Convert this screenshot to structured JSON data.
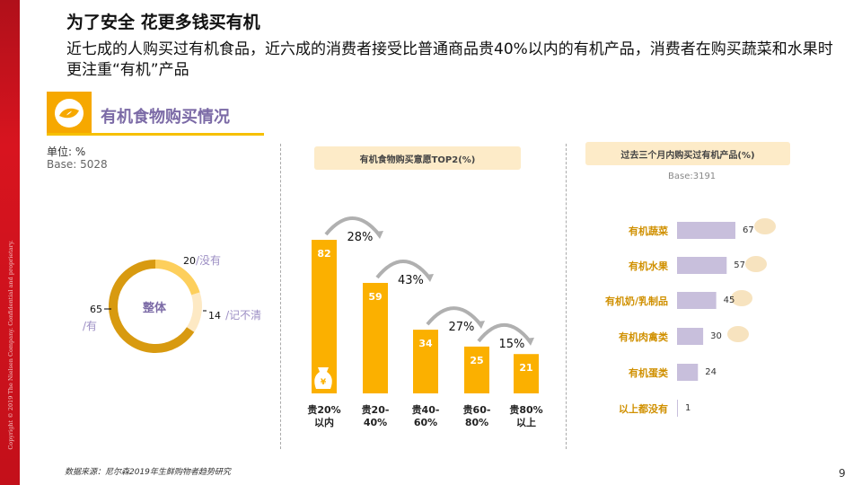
{
  "sidebar": {
    "copyright": "Copyright © 2019 The Nielsen Company. Confidential and proprietary."
  },
  "header": {
    "title": "为了安全 花更多钱买有机",
    "subtitle": "近七成的人购买过有机食品，近六成的消费者接受比普通商品贵40%以内的有机产品，消费者在购买蔬菜和水果时更注重“有机”产品"
  },
  "section": {
    "title": "有机食物购买情况",
    "unit": "单位: %",
    "base": "Base: 5028"
  },
  "colors": {
    "accent": "#f6a800",
    "purple": "#7b6aa6",
    "bar_purple": "#c8bfdc",
    "sidebar_red": "#c8121c"
  },
  "chart_data": [
    {
      "type": "pie",
      "subtype": "donut",
      "center_label": "整体",
      "slices": [
        {
          "label": "/没有",
          "value": 20,
          "color": "#fdcf5c"
        },
        {
          "label": "/记不清",
          "value": 14,
          "color": "#fde9c4"
        },
        {
          "label": "/有",
          "value": 65,
          "color": "#d89a10"
        }
      ]
    },
    {
      "type": "bar",
      "title": "有机食物购买意愿TOP2(%)",
      "categories": [
        "贵20%以内",
        "贵20-40%",
        "贵40-60%",
        "贵60-80%",
        "贵80%以上"
      ],
      "category_lines": [
        [
          "贵20%",
          "以内"
        ],
        [
          "贵20-",
          "40%"
        ],
        [
          "贵40-",
          "60%"
        ],
        [
          "贵60-",
          "80%"
        ],
        [
          "贵80%",
          "以上"
        ]
      ],
      "values": [
        82,
        59,
        34,
        25,
        21
      ],
      "color": "#fbb000",
      "drop_annotations": [
        "28%",
        "43%",
        "27%",
        "15%"
      ]
    },
    {
      "type": "bar",
      "orientation": "horizontal",
      "title": "过去三个月内购买过有机产品(%)",
      "base": "Base:3191",
      "categories": [
        "有机蔬菜",
        "有机水果",
        "有机奶/乳制品",
        "有机肉禽类",
        "有机蛋类",
        "以上都没有"
      ],
      "values": [
        67,
        57,
        45,
        30,
        24,
        1
      ],
      "color": "#c8bfdc"
    }
  ],
  "footer": {
    "source": "数据来源：尼尔森2019年生鲜购物者趋势研究",
    "page": "9"
  }
}
